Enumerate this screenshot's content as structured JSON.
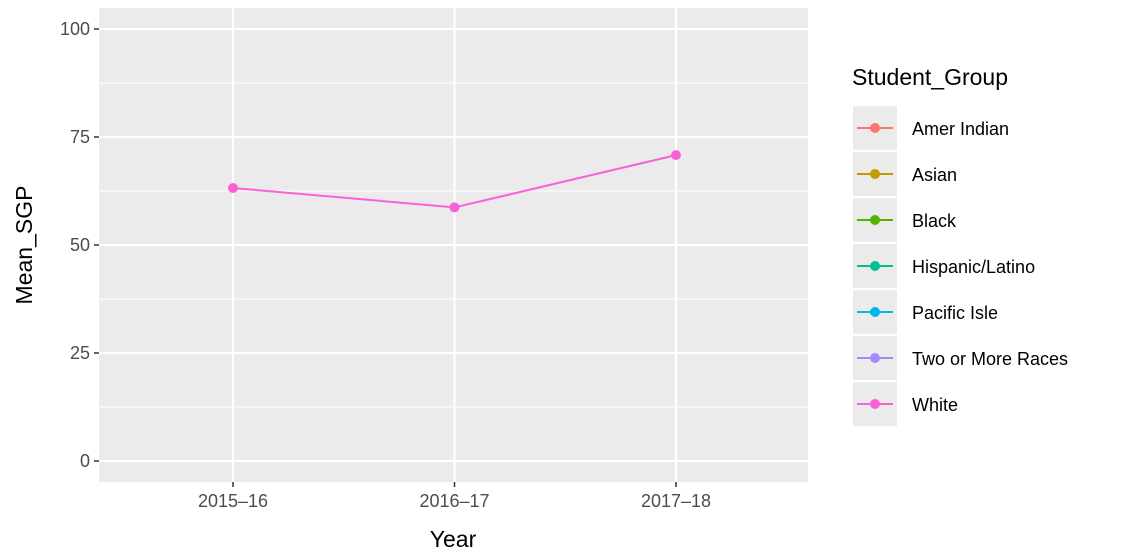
{
  "chart_data": {
    "type": "line",
    "xlabel": "Year",
    "ylabel": "Mean_SGP",
    "categories": [
      "2015–16",
      "2016–17",
      "2017–18"
    ],
    "ylim": [
      0,
      100
    ],
    "yticks": [
      0,
      25,
      50,
      75,
      100
    ],
    "grid": true,
    "legend": {
      "title": "Student_Group",
      "placement": "right",
      "entries": [
        {
          "name": "Amer Indian",
          "color": "#F8766D"
        },
        {
          "name": "Asian",
          "color": "#C49A00"
        },
        {
          "name": "Black",
          "color": "#53B400"
        },
        {
          "name": "Hispanic/Latino",
          "color": "#00C094"
        },
        {
          "name": "Pacific Isle",
          "color": "#00B6EB"
        },
        {
          "name": "Two or More Races",
          "color": "#A58AFF"
        },
        {
          "name": "White",
          "color": "#FB61D7"
        }
      ]
    },
    "series": [
      {
        "name": "White",
        "color": "#FB61D7",
        "values": [
          63.2,
          58.7,
          70.8
        ]
      }
    ]
  }
}
